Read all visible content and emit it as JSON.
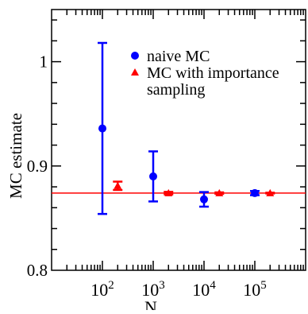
{
  "chart_data": {
    "type": "scatter",
    "x_scale": "log",
    "xlim": [
      10,
      1000000
    ],
    "ylim": [
      0.8,
      1.05
    ],
    "xlabel": "N",
    "ylabel": "MC estimate",
    "x_ticks": [
      {
        "value": 100,
        "base": "10",
        "exp": "2"
      },
      {
        "value": 1000,
        "base": "10",
        "exp": "3"
      },
      {
        "value": 10000,
        "base": "10",
        "exp": "4"
      },
      {
        "value": 100000,
        "base": "10",
        "exp": "5"
      }
    ],
    "y_ticks": [
      {
        "value": 0.8,
        "label": "0.8"
      },
      {
        "value": 0.9,
        "label": "0.9"
      },
      {
        "value": 1.0,
        "label": "1"
      }
    ],
    "reference_line": {
      "y": 0.874,
      "color": "#ff0000"
    },
    "legend": {
      "position": "top-right",
      "entries": [
        {
          "label": "naive MC",
          "series": 0
        },
        {
          "label": "MC with importance",
          "label2": " sampling",
          "series": 1
        }
      ]
    },
    "series": [
      {
        "name": "naive MC",
        "color": "#0000ff",
        "marker": "circle",
        "points": [
          {
            "x": 100,
            "y": 0.936,
            "err": 0.082
          },
          {
            "x": 1000,
            "y": 0.89,
            "err": 0.024
          },
          {
            "x": 10000,
            "y": 0.868,
            "err": 0.007
          },
          {
            "x": 100000,
            "y": 0.874,
            "err": 0.002
          }
        ]
      },
      {
        "name": "MC with importance sampling",
        "color": "#ff0000",
        "marker": "triangle",
        "points": [
          {
            "x": 200,
            "y": 0.881,
            "err": 0.004
          },
          {
            "x": 2000,
            "y": 0.874,
            "err": 0.0012
          },
          {
            "x": 20000,
            "y": 0.874,
            "err": 0.0007
          },
          {
            "x": 200000,
            "y": 0.874,
            "err": 0.0004
          }
        ]
      }
    ],
    "grid": false
  }
}
